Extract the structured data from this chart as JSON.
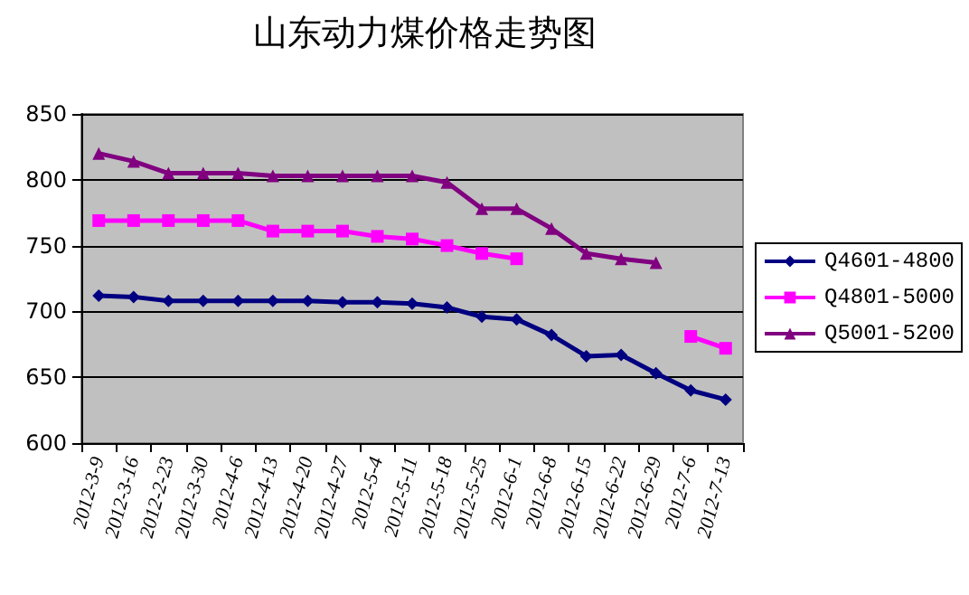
{
  "chart_data": {
    "type": "line",
    "title": "山东动力煤价格走势图",
    "categories": [
      "2012-3-9",
      "2012-3-16",
      "2012-2-23",
      "2012-3-30",
      "2012-4-6",
      "2012-4-13",
      "2012-4-20",
      "2012-4-27",
      "2012-5-4",
      "2012-5-11",
      "2012-5-18",
      "2012-5-25",
      "2012-6-1",
      "2012-6-8",
      "2012-6-15",
      "2012-6-22",
      "2012-6-29",
      "2012-7-6",
      "2012-7-13"
    ],
    "series": [
      {
        "name": "Q4601-4800",
        "color": "#000080",
        "marker": "diamond",
        "values": [
          712,
          711,
          708,
          708,
          708,
          708,
          708,
          707,
          707,
          706,
          703,
          696,
          694,
          682,
          666,
          667,
          653,
          640,
          633
        ]
      },
      {
        "name": "Q4801-5000",
        "color": "#ff00ff",
        "marker": "square",
        "values": [
          769,
          769,
          769,
          769,
          769,
          761,
          761,
          761,
          757,
          755,
          750,
          744,
          740,
          null,
          null,
          null,
          null,
          681,
          672
        ]
      },
      {
        "name": "Q5001-5200",
        "color": "#800080",
        "marker": "triangle",
        "values": [
          820,
          814,
          805,
          805,
          805,
          803,
          803,
          803,
          803,
          803,
          798,
          778,
          778,
          763,
          744,
          740,
          737,
          null,
          null
        ]
      }
    ],
    "ylim": [
      600,
      850
    ],
    "yticks": [
      600,
      650,
      700,
      750,
      800,
      850
    ],
    "grid": "y",
    "legend": "right"
  }
}
